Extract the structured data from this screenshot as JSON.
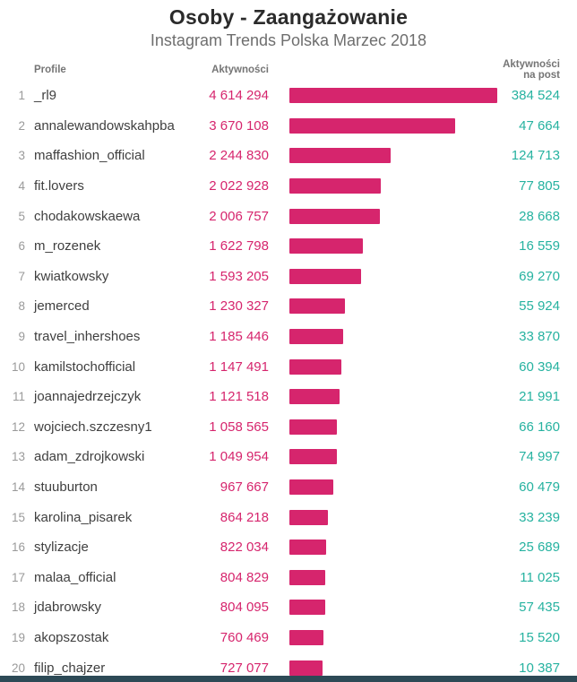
{
  "title": "Osoby - Zaangażowanie",
  "subtitle": "Instagram Trends Polska Marzec 2018",
  "columns": {
    "profile": "Profile",
    "activity": "Aktywności",
    "activity_per_post": "Aktywności na post"
  },
  "colors": {
    "bar": "#d6256d",
    "activity_text": "#d6256d",
    "per_post_text": "#26b2a0",
    "footer": "#2d4a56"
  },
  "chart_data": {
    "type": "bar",
    "title": "Osoby - Zaangażowanie",
    "subtitle": "Instagram Trends Polska Marzec 2018",
    "orientation": "horizontal",
    "categories": [
      "_rl9",
      "annalewandowskahpba",
      "maffashion_official",
      "fit.lovers",
      "chodakowskaewa",
      "m_rozenek",
      "kwiatkowsky",
      "jemerced",
      "travel_inhershoes",
      "kamilstochofficial",
      "joannajedrzejczyk",
      "wojciech.szczesny1",
      "adam_zdrojkowski",
      "stuuburton",
      "karolina_pisarek",
      "stylizacje",
      "malaa_official",
      "jdabrowsky",
      "akopszostak",
      "filip_chajzer"
    ],
    "series": [
      {
        "name": "Aktywności",
        "values": [
          4614294,
          3670108,
          2244830,
          2022928,
          2006757,
          1622798,
          1593205,
          1230327,
          1185446,
          1147491,
          1121518,
          1058565,
          1049954,
          967667,
          864218,
          822034,
          804829,
          804095,
          760469,
          727077
        ]
      },
      {
        "name": "Aktywności na post",
        "values": [
          384524,
          47664,
          124713,
          77805,
          28668,
          16559,
          69270,
          55924,
          33870,
          60394,
          21991,
          66160,
          74997,
          60479,
          33239,
          25689,
          11025,
          57435,
          15520,
          10387
        ]
      }
    ],
    "xlim": [
      0,
      4614294
    ],
    "grid": false,
    "legend": "none"
  },
  "rows": [
    {
      "rank": "1",
      "profile": "_rl9",
      "activity": "4 614 294",
      "activity_value": 4614294,
      "per_post": "384 524"
    },
    {
      "rank": "2",
      "profile": "annalewandowskahpba",
      "activity": "3 670 108",
      "activity_value": 3670108,
      "per_post": "47 664"
    },
    {
      "rank": "3",
      "profile": "maffashion_official",
      "activity": "2 244 830",
      "activity_value": 2244830,
      "per_post": "124 713"
    },
    {
      "rank": "4",
      "profile": "fit.lovers",
      "activity": "2 022 928",
      "activity_value": 2022928,
      "per_post": "77 805"
    },
    {
      "rank": "5",
      "profile": "chodakowskaewa",
      "activity": "2 006 757",
      "activity_value": 2006757,
      "per_post": "28 668"
    },
    {
      "rank": "6",
      "profile": "m_rozenek",
      "activity": "1 622 798",
      "activity_value": 1622798,
      "per_post": "16 559"
    },
    {
      "rank": "7",
      "profile": "kwiatkowsky",
      "activity": "1 593 205",
      "activity_value": 1593205,
      "per_post": "69 270"
    },
    {
      "rank": "8",
      "profile": "jemerced",
      "activity": "1 230 327",
      "activity_value": 1230327,
      "per_post": "55 924"
    },
    {
      "rank": "9",
      "profile": "travel_inhershoes",
      "activity": "1 185 446",
      "activity_value": 1185446,
      "per_post": "33 870"
    },
    {
      "rank": "10",
      "profile": "kamilstochofficial",
      "activity": "1 147 491",
      "activity_value": 1147491,
      "per_post": "60 394"
    },
    {
      "rank": "11",
      "profile": "joannajedrzejczyk",
      "activity": "1 121 518",
      "activity_value": 1121518,
      "per_post": "21 991"
    },
    {
      "rank": "12",
      "profile": "wojciech.szczesny1",
      "activity": "1 058 565",
      "activity_value": 1058565,
      "per_post": "66 160"
    },
    {
      "rank": "13",
      "profile": "adam_zdrojkowski",
      "activity": "1 049 954",
      "activity_value": 1049954,
      "per_post": "74 997"
    },
    {
      "rank": "14",
      "profile": "stuuburton",
      "activity": "967 667",
      "activity_value": 967667,
      "per_post": "60 479"
    },
    {
      "rank": "15",
      "profile": "karolina_pisarek",
      "activity": "864 218",
      "activity_value": 864218,
      "per_post": "33 239"
    },
    {
      "rank": "16",
      "profile": "stylizacje",
      "activity": "822 034",
      "activity_value": 822034,
      "per_post": "25 689"
    },
    {
      "rank": "17",
      "profile": "malaa_official",
      "activity": "804 829",
      "activity_value": 804829,
      "per_post": "11 025"
    },
    {
      "rank": "18",
      "profile": "jdabrowsky",
      "activity": "804 095",
      "activity_value": 804095,
      "per_post": "57 435"
    },
    {
      "rank": "19",
      "profile": "akopszostak",
      "activity": "760 469",
      "activity_value": 760469,
      "per_post": "15 520"
    },
    {
      "rank": "20",
      "profile": "filip_chajzer",
      "activity": "727 077",
      "activity_value": 727077,
      "per_post": "10 387"
    }
  ]
}
